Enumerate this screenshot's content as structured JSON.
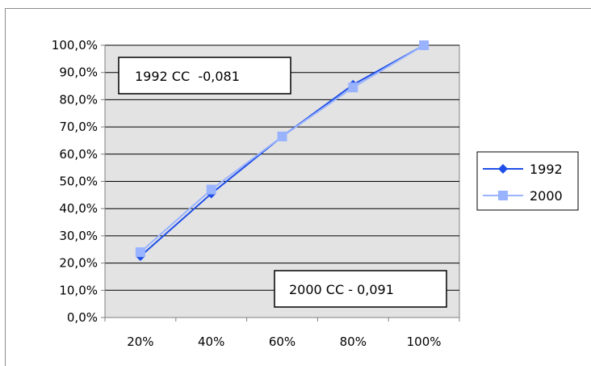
{
  "chart_data": {
    "type": "line",
    "categories": [
      "20%",
      "40%",
      "60%",
      "80%",
      "100%"
    ],
    "series": [
      {
        "name": "1992",
        "values": [
          22.5,
          45.5,
          66.5,
          85.5,
          100.0
        ],
        "color": "#1f4fe8",
        "marker": "diamond"
      },
      {
        "name": "2000",
        "values": [
          24.0,
          47.0,
          66.5,
          84.5,
          100.0
        ],
        "color": "#99b3ff",
        "marker": "square"
      }
    ],
    "yticks": [
      "0,0%",
      "10,0%",
      "20,0%",
      "30,0%",
      "40,0%",
      "50,0%",
      "60,0%",
      "70,0%",
      "80,0%",
      "90,0%",
      "100,0%"
    ],
    "ylim": [
      0,
      100
    ],
    "title": "",
    "xlabel": "",
    "ylabel": "",
    "grid": true,
    "plot_background": "#e3e3e3",
    "gridline_color": "#000000",
    "legend_position": "right",
    "annotations": [
      {
        "text": "1992 CC  -0,081"
      },
      {
        "text": "2000 CC - 0,091"
      }
    ]
  }
}
